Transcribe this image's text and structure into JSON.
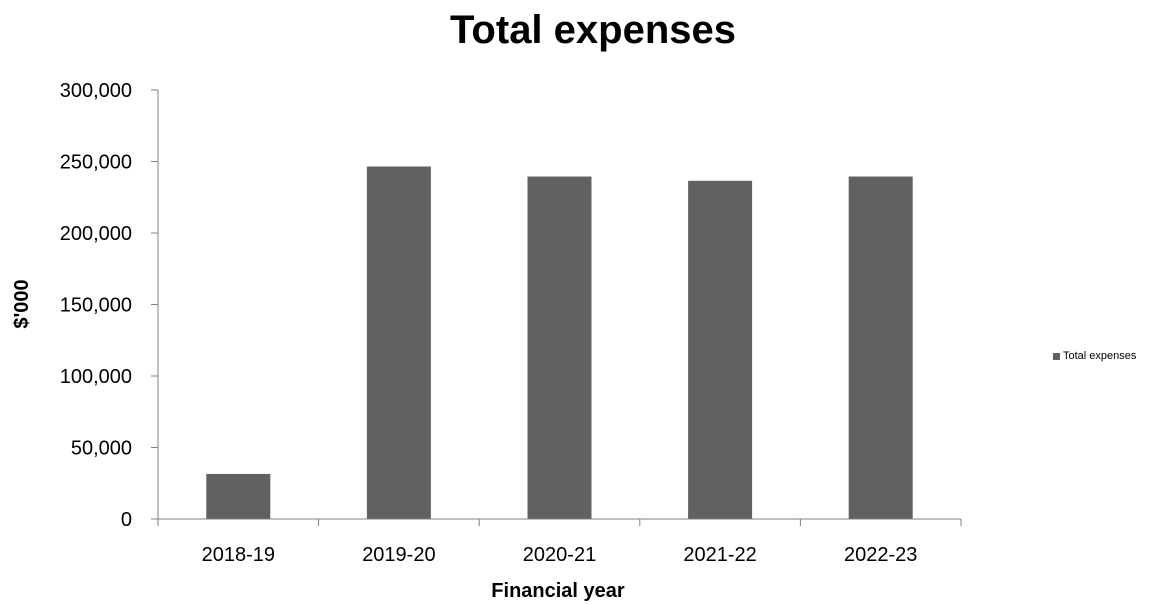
{
  "chart_data": {
    "type": "bar",
    "title": "Total expenses",
    "xlabel": "Financial year",
    "ylabel": "$'000",
    "categories": [
      "2018-19",
      "2019-20",
      "2020-21",
      "2021-22",
      "2022-23"
    ],
    "series": [
      {
        "name": "Total expenses",
        "values": [
          31500,
          246500,
          239500,
          236500,
          239500
        ],
        "color": "#616161"
      }
    ],
    "ylim": [
      0,
      300000
    ],
    "yticks": [
      0,
      50000,
      100000,
      150000,
      200000,
      250000,
      300000
    ],
    "ytick_labels": [
      "0",
      "50,000",
      "100,000",
      "150,000",
      "200,000",
      "250,000",
      "300,000"
    ],
    "grid": false,
    "legend_position": "right"
  }
}
